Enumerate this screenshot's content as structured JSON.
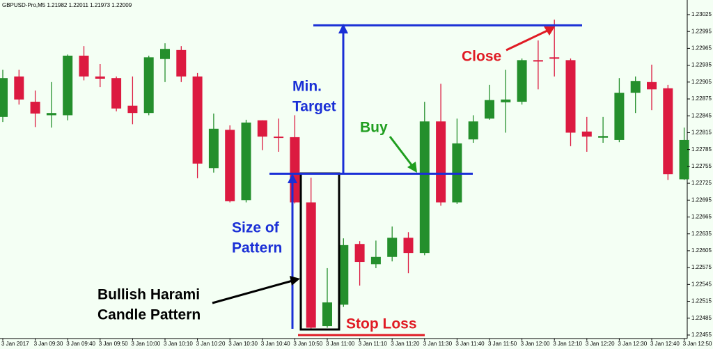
{
  "chart_data": {
    "type": "candlestick",
    "header": "GBPUSD-Pro,M5  1.21982 1.22011 1.21973 1.22009",
    "categories": [
      "3 Jan 2017",
      null,
      "3 Jan 09:30",
      null,
      "3 Jan 09:40",
      null,
      "3 Jan 09:50",
      null,
      "3 Jan 10:00",
      null,
      "3 Jan 10:10",
      null,
      "3 Jan 10:20",
      null,
      "3 Jan 10:30",
      null,
      "3 Jan 10:40",
      null,
      "3 Jan 10:50",
      null,
      "3 Jan 11:00",
      null,
      "3 Jan 11:10",
      null,
      "3 Jan 11:20",
      null,
      "3 Jan 11:30",
      null,
      "3 Jan 11:40",
      null,
      "3 Jan 11:50",
      null,
      "3 Jan 12:00",
      null,
      "3 Jan 12:10",
      null,
      "3 Jan 12:20",
      null,
      "3 Jan 12:30",
      null,
      "3 Jan 12:40",
      null,
      "3 Jan 12:50"
    ],
    "open": [
      1.22843,
      1.22915,
      1.2287,
      1.22846,
      1.22846,
      1.22952,
      1.22915,
      1.22912,
      1.22863,
      1.2285,
      1.22946,
      1.22962,
      1.22915,
      1.22752,
      1.2282,
      1.22695,
      1.22837,
      1.22808,
      1.22807,
      1.22691,
      1.22471,
      1.22509,
      1.22617,
      1.22581,
      1.22594,
      1.22628,
      1.22601,
      1.22835,
      1.22691,
      1.22803,
      1.2284,
      1.22869,
      1.2287,
      1.22944,
      1.22949,
      1.22944,
      1.22817,
      1.22806,
      1.22802,
      1.22886,
      1.22905,
      1.22894,
      1.22732
    ],
    "high": [
      1.22927,
      1.22927,
      1.2289,
      1.22905,
      1.22954,
      1.22969,
      1.22937,
      1.22915,
      1.22915,
      1.22952,
      1.22974,
      1.22969,
      1.22921,
      1.22849,
      1.22828,
      1.22838,
      1.22837,
      1.2284,
      1.22846,
      1.22735,
      1.22574,
      1.22627,
      1.22622,
      1.22623,
      1.22648,
      1.22638,
      1.2287,
      1.22902,
      1.2284,
      1.22846,
      1.229,
      1.22927,
      1.22947,
      1.22979,
      1.23016,
      1.22947,
      1.22843,
      1.22843,
      1.22912,
      1.22915,
      1.22936,
      1.229,
      1.22824
    ],
    "low": [
      1.22834,
      1.22865,
      1.22825,
      1.22824,
      1.22837,
      1.22908,
      1.22896,
      1.22853,
      1.2283,
      1.22846,
      1.22905,
      1.22905,
      1.22734,
      1.22744,
      1.22691,
      1.22691,
      1.22784,
      1.22781,
      1.22689,
      1.22465,
      1.22468,
      1.22505,
      1.22543,
      1.22574,
      1.22586,
      1.22565,
      1.22597,
      1.22685,
      1.22688,
      1.22797,
      1.22838,
      1.22815,
      1.22865,
      1.22892,
      1.22915,
      1.22791,
      1.22781,
      1.22797,
      1.22798,
      1.2285,
      1.22855,
      1.22731,
      1.22731
    ],
    "close": [
      1.22912,
      1.22874,
      1.22849,
      1.2285,
      1.22952,
      1.22915,
      1.22911,
      1.22858,
      1.2285,
      1.22949,
      1.22964,
      1.22915,
      1.2276,
      1.22822,
      1.22693,
      1.22833,
      1.22808,
      1.22806,
      1.22691,
      1.22468,
      1.22513,
      1.22615,
      1.22585,
      1.22594,
      1.22628,
      1.22601,
      1.22835,
      1.22691,
      1.22796,
      1.22835,
      1.22873,
      1.22874,
      1.22944,
      1.22942,
      1.22947,
      1.22815,
      1.22808,
      1.22809,
      1.22886,
      1.22907,
      1.22892,
      1.22741,
      1.22802
    ],
    "up_color": "#248f2c",
    "down_color": "#dc1a40",
    "ylim": [
      1.2245,
      1.23051
    ],
    "yticks": [
      1.22455,
      1.22485,
      1.22515,
      1.22545,
      1.22575,
      1.22605,
      1.22635,
      1.22665,
      1.22695,
      1.22725,
      1.22755,
      1.22785,
      1.22815,
      1.22845,
      1.22875,
      1.22905,
      1.22935,
      1.22965,
      1.22995,
      1.23025
    ],
    "levels": [
      {
        "value": 1.23006,
        "color": "#1a2fd6"
      },
      {
        "value": 1.22742,
        "color": "#1a2fd6"
      },
      {
        "value": 1.22455,
        "color": "#e01b24"
      }
    ],
    "annotations": [
      {
        "lines": [
          "Close"
        ],
        "color": "#e01b24"
      },
      {
        "lines": [
          "Buy"
        ],
        "color": "#1f9e1f"
      },
      {
        "lines": [
          "Min.",
          "Target"
        ],
        "color": "#1a2fd6"
      },
      {
        "lines": [
          "Size of",
          "Pattern"
        ],
        "color": "#1a2fd6"
      },
      {
        "lines": [
          "Bullish Harami",
          "Candle Pattern"
        ],
        "color": "#000000"
      },
      {
        "lines": [
          "Stop Loss"
        ],
        "color": "#e01b24"
      }
    ]
  }
}
